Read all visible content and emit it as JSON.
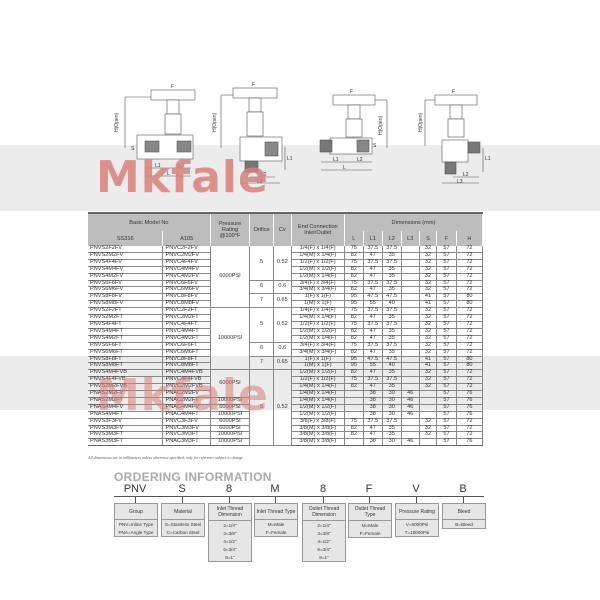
{
  "diagrams": {
    "labels": {
      "F": "F",
      "H": "H(Open)",
      "S": "S",
      "L": "L",
      "L1": "L1",
      "L2": "L2",
      "L3": "L3"
    }
  },
  "watermark": "Mkfale",
  "table": {
    "headers": {
      "basic_model": "Basic Model No",
      "ss316": "SS316",
      "a105": "A105",
      "pressure": "Pressure Rating @100°F",
      "orifice": "Orifice",
      "cv": "Cv",
      "end_connection": "End Connection Inlet/Outlet",
      "dimensions": "Dimensions (mm)",
      "dims": [
        "L",
        "L1",
        "L2",
        "L3",
        "S",
        "F",
        "H"
      ]
    },
    "rows": [
      {
        "ss": "PNVS2F2FV",
        "a": "PNVC2F2FV",
        "end": "1/4(F) x 1/4(F)",
        "d": [
          "75",
          "37.5",
          "37.5",
          "",
          "32",
          "57",
          "72"
        ]
      },
      {
        "ss": "PNVS2M2FV",
        "a": "PNVC2M2FV",
        "end": "1/4(M) x 1/4(F)",
        "d": [
          "82",
          "47",
          "35",
          "",
          "32",
          "57",
          "72"
        ]
      },
      {
        "ss": "PNVS4F4FV",
        "a": "PNVC4F4FV",
        "end": "1/2(F) x 1/2(F)",
        "d": [
          "75",
          "37.5",
          "37.5",
          "",
          "32",
          "57",
          "72"
        ]
      },
      {
        "ss": "PNVS4M4FV",
        "a": "PNVC4M4FV",
        "end": "1/2(M) x 1/2(F)",
        "d": [
          "82",
          "47",
          "35",
          "",
          "32",
          "57",
          "72"
        ]
      },
      {
        "ss": "PNVS4M2FV",
        "a": "PNVC4M2FV",
        "end": "1/2(M) x 1/4(F)",
        "d": [
          "82",
          "47",
          "35",
          "",
          "32",
          "57",
          "72"
        ]
      },
      {
        "ss": "PNVS6F6FV",
        "a": "PNVC6F6FV",
        "end": "3/4(F) x 3/4(F)",
        "d": [
          "75",
          "37.5",
          "37.5",
          "",
          "32",
          "57",
          "72"
        ]
      },
      {
        "ss": "PNVS6M6FV",
        "a": "PNVC6M6FV",
        "end": "3/4(M) x 3/4(F)",
        "d": [
          "82",
          "47",
          "35",
          "",
          "32",
          "57",
          "72"
        ]
      },
      {
        "ss": "PNVS8F8FV",
        "a": "PNVC8F8FV",
        "end": "1(F) x 1(F)",
        "d": [
          "95",
          "47.5",
          "47.5",
          "",
          "41",
          "57",
          "80"
        ]
      },
      {
        "ss": "PNVS8M8FV",
        "a": "PNVC8M8FV",
        "end": "1(M) x 1(F)",
        "d": [
          "95",
          "55",
          "40",
          "",
          "41",
          "57",
          "80"
        ]
      },
      {
        "ss": "PNVS2F2FT",
        "a": "PNVC2F2FT",
        "end": "1/4(F) x 1/4(F)",
        "d": [
          "75",
          "37.5",
          "37.5",
          "",
          "32",
          "57",
          "72"
        ]
      },
      {
        "ss": "PNVS2M2FT",
        "a": "PNVC2M2FT",
        "end": "1/4(M) x 1/4(F)",
        "d": [
          "82",
          "47",
          "35",
          "",
          "32",
          "57",
          "72"
        ]
      },
      {
        "ss": "PNVS4F4FT",
        "a": "PNVC4F4FT",
        "end": "1/2(F) x 1/2(F)",
        "d": [
          "75",
          "37.5",
          "37.5",
          "",
          "32",
          "57",
          "72"
        ]
      },
      {
        "ss": "PNVS4M4FT",
        "a": "PNVC4M4FT",
        "end": "1/2(M) x 1/2(F)",
        "d": [
          "82",
          "47",
          "35",
          "",
          "32",
          "57",
          "72"
        ]
      },
      {
        "ss": "PNVS4M2FT",
        "a": "PNVC4M2FT",
        "end": "1/2(M) x 1/4(F)",
        "d": [
          "82",
          "47",
          "35",
          "",
          "32",
          "57",
          "72"
        ]
      },
      {
        "ss": "PNVS6F6FT",
        "a": "PNVC6F6FT",
        "end": "3/4(F) x 3/4(F)",
        "d": [
          "75",
          "37.5",
          "37.5",
          "",
          "32",
          "57",
          "72"
        ]
      },
      {
        "ss": "PNVS6M6FT",
        "a": "PNVC6M6FT",
        "end": "3/4(M) x 3/4(F)",
        "d": [
          "82",
          "47",
          "35",
          "",
          "32",
          "57",
          "72"
        ]
      },
      {
        "ss": "PNVS8F8FT",
        "a": "PNVC8F8FT",
        "end": "1(F) x 1(F)",
        "d": [
          "95",
          "47.5",
          "47.5",
          "",
          "41",
          "57",
          "80"
        ]
      },
      {
        "ss": "PNVS8M8FT",
        "a": "PNVC8M8FT",
        "end": "1(M) x 1(F)",
        "d": [
          "95",
          "55",
          "40",
          "",
          "41",
          "57",
          "80"
        ]
      },
      {
        "ss": "PNVS4M4FVB",
        "a": "PNVC4M4FVB",
        "end": "1/2(M) x 1/2(F)",
        "d": [
          "82",
          "47",
          "35",
          "",
          "32",
          "57",
          "72"
        ]
      },
      {
        "ss": "PNVS4F4FVB",
        "a": "PNVC4F4FVB",
        "end": "1/2(F) x 1/2(F)",
        "d": [
          "75",
          "37.5",
          "37.5",
          "",
          "32",
          "57",
          "72"
        ]
      },
      {
        "ss": "PNVS2M2FVB",
        "a": "PNVC2M2FVB",
        "end": "1/4(M) x 1/4(F)",
        "d": [
          "82",
          "47",
          "35",
          "",
          "32",
          "57",
          "72"
        ]
      },
      {
        "ss": "PNAS2M2FV",
        "a": "PNAC2M2FV",
        "end": "1/4(M) x 1/4(F)",
        "d": [
          "",
          "38",
          "30",
          "46",
          "",
          "57",
          "76"
        ]
      },
      {
        "ss": "PNAS2M2FT",
        "a": "PNAC2M2FT",
        "end": "1/4(M) x 1/4(F)",
        "d": [
          "",
          "38",
          "30",
          "46",
          "",
          "57",
          "76"
        ]
      },
      {
        "ss": "PNAS4M4FV",
        "a": "PNAC4M4FV",
        "end": "1/2(M) x 1/2(F)",
        "d": [
          "",
          "38",
          "30",
          "46",
          "",
          "57",
          "76"
        ]
      },
      {
        "ss": "PNAS4M4FT",
        "a": "PNAC4M4FT",
        "end": "1/2(M) x 1/2(F)",
        "d": [
          "",
          "38",
          "30",
          "46",
          "",
          "57",
          "76"
        ]
      },
      {
        "ss": "PNVS3F3FV",
        "a": "PNVC3F3FV",
        "end": "3/8(F) x 3/8(F)",
        "d": [
          "75",
          "37.5",
          "37.5",
          "",
          "32",
          "57",
          "72"
        ]
      },
      {
        "ss": "PNVS3M3FV",
        "a": "PNVC3M3FV",
        "end": "3/8(M) x 3/8(F)",
        "d": [
          "82",
          "47",
          "35",
          "",
          "32",
          "57",
          "72"
        ]
      },
      {
        "ss": "PNVS3M3FT",
        "a": "PNVC3M3FT",
        "end": "3/8(M) x 3/8(F)",
        "d": [
          "82",
          "47",
          "35",
          "",
          "32",
          "57",
          "72"
        ]
      },
      {
        "ss": "PNAS3M3FT",
        "a": "PNAC3M3FT",
        "end": "3/8(M) x 3/8(F)",
        "d": [
          "",
          "38",
          "30",
          "46",
          "",
          "57",
          "76"
        ]
      }
    ],
    "pressure_groups": [
      {
        "label": "6000PSI",
        "rows": 9
      },
      {
        "label": "10000PSI",
        "rows": 9
      },
      {
        "label": "6000PSI",
        "rows": 4
      },
      {
        "label": "10000PSI",
        "rows": 1
      },
      {
        "label": "6000PSI",
        "rows": 1
      },
      {
        "label": "10000PSI",
        "rows": 1
      },
      {
        "label": "6000PSI",
        "rows": 1
      },
      {
        "label": "6000PSI",
        "rows": 1
      },
      {
        "label": "10000PSI",
        "rows": 1
      },
      {
        "label": "10000PSI",
        "rows": 1
      }
    ],
    "orifice_groups": [
      {
        "orifice": "5",
        "cv": "0.52",
        "rows": 5
      },
      {
        "orifice": "6",
        "cv": "0.6",
        "rows": 2
      },
      {
        "orifice": "7",
        "cv": "0.65",
        "rows": 2
      },
      {
        "orifice": "5",
        "cv": "0.52",
        "rows": 5
      },
      {
        "orifice": "6",
        "cv": "0.6",
        "rows": 2
      },
      {
        "orifice": "7",
        "cv": "0.65",
        "rows": 2
      },
      {
        "orifice": "5",
        "cv": "0.52",
        "rows": 11
      }
    ]
  },
  "footnote": "All dimensions are in millimeters unless otherwise specified, only for reference subject to change.",
  "ordering": {
    "title": "ORDERING INFORMATION",
    "codes": [
      "PNV",
      "S",
      "8",
      "M",
      "8",
      "F",
      "V",
      "B"
    ],
    "boxes": [
      {
        "header": "Group",
        "items": [
          "PNV=Inline Type",
          "PNA=Angle Type"
        ]
      },
      {
        "header": "Material",
        "items": [
          "S=Stainless Steel",
          "C=Carbon Steel"
        ]
      },
      {
        "header": "Inlet Thread Dimension",
        "items": [
          "2=1/4\"",
          "3=3/8\"",
          "4=1/2\"",
          "6=3/4\"",
          "8=1\""
        ]
      },
      {
        "header": "Inlet Thread Type",
        "items": [
          "M=Male",
          "F=Female"
        ]
      },
      {
        "header": "Outlet Thread Dimension",
        "items": [
          "2=1/4\"",
          "3=3/8\"",
          "4=1/2\"",
          "6=3/4\"",
          "8=1\""
        ]
      },
      {
        "header": "Outlet Thread Type",
        "items": [
          "M=Male",
          "F=Female"
        ]
      },
      {
        "header": "Pressure Rating",
        "items": [
          "V=6000Psi",
          "T=10000Psi"
        ]
      },
      {
        "header": "Bleed",
        "items": [
          "B=Bleed"
        ]
      }
    ]
  }
}
